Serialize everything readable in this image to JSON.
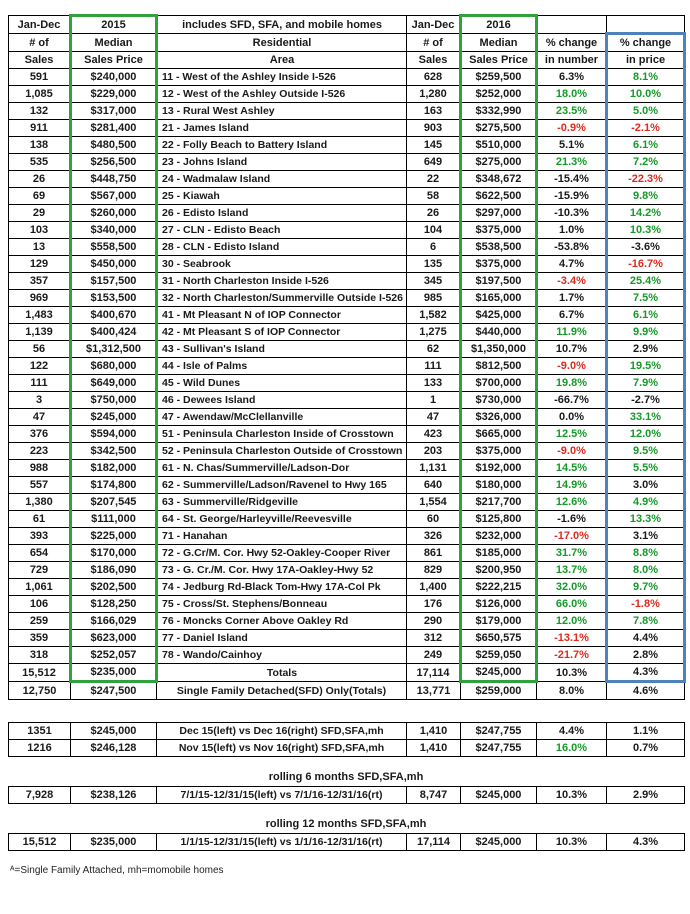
{
  "colors": {
    "positive": "#149b27",
    "negative": "#e02a1e",
    "green_box": "#2fa23c",
    "blue_box": "#4f81bd"
  },
  "header": {
    "r1": [
      "Jan-Dec",
      "2015",
      "includes SFD, SFA, and mobile homes",
      "Jan-Dec",
      "2016",
      "",
      ""
    ],
    "r2": [
      "# of",
      "Median",
      "Residential",
      "# of",
      "Median",
      "% change",
      "% change"
    ],
    "r3": [
      "Sales",
      "Sales Price",
      "Area",
      "Sales",
      "Sales Price",
      "in number",
      "in price"
    ]
  },
  "main_rows": [
    {
      "cells": [
        "591",
        "$240,000",
        "11 - West of the Ashley Inside I-526",
        "628",
        "$259,500",
        "6.3%",
        "8.1%"
      ],
      "num": "neu",
      "price": "pos"
    },
    {
      "cells": [
        "1,085",
        "$229,000",
        "12 - West of the Ashley Outside I-526",
        "1,280",
        "$252,000",
        "18.0%",
        "10.0%"
      ],
      "num": "pos",
      "price": "pos"
    },
    {
      "cells": [
        "132",
        "$317,000",
        "13 - Rural West Ashley",
        "163",
        "$332,990",
        "23.5%",
        "5.0%"
      ],
      "num": "pos",
      "price": "pos"
    },
    {
      "cells": [
        "911",
        "$281,400",
        "21 - James Island",
        "903",
        "$275,500",
        "-0.9%",
        "-2.1%"
      ],
      "num": "neg",
      "price": "neg"
    },
    {
      "cells": [
        "138",
        "$480,500",
        "22 - Folly Beach to Battery Island",
        "145",
        "$510,000",
        "5.1%",
        "6.1%"
      ],
      "num": "neu",
      "price": "pos"
    },
    {
      "cells": [
        "535",
        "$256,500",
        "23 - Johns Island",
        "649",
        "$275,000",
        "21.3%",
        "7.2%"
      ],
      "num": "pos",
      "price": "pos"
    },
    {
      "cells": [
        "26",
        "$448,750",
        "24 - Wadmalaw Island",
        "22",
        "$348,672",
        "-15.4%",
        "-22.3%"
      ],
      "num": "neu",
      "price": "neg"
    },
    {
      "cells": [
        "69",
        "$567,000",
        "25 - Kiawah",
        "58",
        "$622,500",
        "-15.9%",
        "9.8%"
      ],
      "num": "neu",
      "price": "pos"
    },
    {
      "cells": [
        "29",
        "$260,000",
        "26 - Edisto Island",
        "26",
        "$297,000",
        "-10.3%",
        "14.2%"
      ],
      "num": "neu",
      "price": "pos"
    },
    {
      "cells": [
        "103",
        "$340,000",
        "27 - CLN - Edisto Beach",
        "104",
        "$375,000",
        "1.0%",
        "10.3%"
      ],
      "num": "neu",
      "price": "pos"
    },
    {
      "cells": [
        "13",
        "$558,500",
        "28 - CLN - Edisto Island",
        "6",
        "$538,500",
        "-53.8%",
        "-3.6%"
      ],
      "num": "neu",
      "price": "neu"
    },
    {
      "cells": [
        "129",
        "$450,000",
        "30 - Seabrook",
        "135",
        "$375,000",
        "4.7%",
        "-16.7%"
      ],
      "num": "neu",
      "price": "neg"
    },
    {
      "cells": [
        "357",
        "$157,500",
        "31 - North Charleston Inside I-526",
        "345",
        "$197,500",
        "-3.4%",
        "25.4%"
      ],
      "num": "neg",
      "price": "pos"
    },
    {
      "cells": [
        "969",
        "$153,500",
        "32 - North Charleston/Summerville Outside I-526",
        "985",
        "$165,000",
        "1.7%",
        "7.5%"
      ],
      "num": "neu",
      "price": "pos"
    },
    {
      "cells": [
        "1,483",
        "$400,670",
        "41 - Mt Pleasant N of IOP Connector",
        "1,582",
        "$425,000",
        "6.7%",
        "6.1%"
      ],
      "num": "neu",
      "price": "pos"
    },
    {
      "cells": [
        "1,139",
        "$400,424",
        "42 - Mt Pleasant S of IOP Connector",
        "1,275",
        "$440,000",
        "11.9%",
        "9.9%"
      ],
      "num": "pos",
      "price": "pos"
    },
    {
      "cells": [
        "56",
        "$1,312,500",
        "43 - Sullivan's Island",
        "62",
        "$1,350,000",
        "10.7%",
        "2.9%"
      ],
      "num": "neu",
      "price": "neu"
    },
    {
      "cells": [
        "122",
        "$680,000",
        "44 - Isle of Palms",
        "111",
        "$812,500",
        "-9.0%",
        "19.5%"
      ],
      "num": "neg",
      "price": "pos"
    },
    {
      "cells": [
        "111",
        "$649,000",
        "45 - Wild Dunes",
        "133",
        "$700,000",
        "19.8%",
        "7.9%"
      ],
      "num": "pos",
      "price": "pos"
    },
    {
      "cells": [
        "3",
        "$750,000",
        "46 - Dewees Island",
        "1",
        "$730,000",
        "-66.7%",
        "-2.7%"
      ],
      "num": "neu",
      "price": "neu"
    },
    {
      "cells": [
        "47",
        "$245,000",
        "47 - Awendaw/McClellanville",
        "47",
        "$326,000",
        "0.0%",
        "33.1%"
      ],
      "num": "neu",
      "price": "pos"
    },
    {
      "cells": [
        "376",
        "$594,000",
        "51 - Peninsula Charleston Inside of Crosstown",
        "423",
        "$665,000",
        "12.5%",
        "12.0%"
      ],
      "num": "pos",
      "price": "pos"
    },
    {
      "cells": [
        "223",
        "$342,500",
        "52 - Peninsula Charleston Outside of Crosstown",
        "203",
        "$375,000",
        "-9.0%",
        "9.5%"
      ],
      "num": "neg",
      "price": "pos"
    },
    {
      "cells": [
        "988",
        "$182,000",
        "61 - N. Chas/Summerville/Ladson-Dor",
        "1,131",
        "$192,000",
        "14.5%",
        "5.5%"
      ],
      "num": "pos",
      "price": "pos"
    },
    {
      "cells": [
        "557",
        "$174,800",
        "62 - Summerville/Ladson/Ravenel to Hwy 165",
        "640",
        "$180,000",
        "14.9%",
        "3.0%"
      ],
      "num": "pos",
      "price": "neu"
    },
    {
      "cells": [
        "1,380",
        "$207,545",
        "63 - Summerville/Ridgeville",
        "1,554",
        "$217,700",
        "12.6%",
        "4.9%"
      ],
      "num": "pos",
      "price": "pos"
    },
    {
      "cells": [
        "61",
        "$111,000",
        "64 - St. George/Harleyville/Reevesville",
        "60",
        "$125,800",
        "-1.6%",
        "13.3%"
      ],
      "num": "neu",
      "price": "pos"
    },
    {
      "cells": [
        "393",
        "$225,000",
        "71 - Hanahan",
        "326",
        "$232,000",
        "-17.0%",
        "3.1%"
      ],
      "num": "neg",
      "price": "neu"
    },
    {
      "cells": [
        "654",
        "$170,000",
        "72 - G.Cr/M. Cor. Hwy 52-Oakley-Cooper River",
        "861",
        "$185,000",
        "31.7%",
        "8.8%"
      ],
      "num": "pos",
      "price": "pos"
    },
    {
      "cells": [
        "729",
        "$186,090",
        "73 - G. Cr./M. Cor. Hwy 17A-Oakley-Hwy 52",
        "829",
        "$200,950",
        "13.7%",
        "8.0%"
      ],
      "num": "pos",
      "price": "pos"
    },
    {
      "cells": [
        "1,061",
        "$202,500",
        "74 - Jedburg Rd-Black Tom-Hwy 17A-Col Pk",
        "1,400",
        "$222,215",
        "32.0%",
        "9.7%"
      ],
      "num": "pos",
      "price": "pos"
    },
    {
      "cells": [
        "106",
        "$128,250",
        "75 - Cross/St. Stephens/Bonneau",
        "176",
        "$126,000",
        "66.0%",
        "-1.8%"
      ],
      "num": "pos",
      "price": "neg"
    },
    {
      "cells": [
        "259",
        "$166,029",
        "76 - Moncks Corner Above Oakley Rd",
        "290",
        "$179,000",
        "12.0%",
        "7.8%"
      ],
      "num": "pos",
      "price": "pos"
    },
    {
      "cells": [
        "359",
        "$623,000",
        "77 - Daniel Island",
        "312",
        "$650,575",
        "-13.1%",
        "4.4%"
      ],
      "num": "neg",
      "price": "neu"
    },
    {
      "cells": [
        "318",
        "$252,057",
        "78 - Wando/Cainhoy",
        "249",
        "$259,050",
        "-21.7%",
        "2.8%"
      ],
      "num": "neg",
      "price": "neu"
    },
    {
      "cells": [
        "15,512",
        "$235,000",
        "Totals",
        "17,114",
        "$245,000",
        "10.3%",
        "4.3%"
      ],
      "num": "neu",
      "price": "neu",
      "center": true
    },
    {
      "cells": [
        "12,750",
        "$247,500",
        "Single Family Detached(SFD) Only(Totals)",
        "13,771",
        "$259,000",
        "8.0%",
        "4.6%"
      ],
      "num": "neu",
      "price": "neu",
      "center": true
    }
  ],
  "compare_rows": [
    {
      "cells": [
        "1351",
        "$245,000",
        "Dec 15(left) vs Dec 16(right) SFD,SFA,mh",
        "1,410",
        "$247,755",
        "4.4%",
        "1.1%"
      ],
      "num": "neu",
      "price": "neu",
      "center": true
    },
    {
      "cells": [
        "1216",
        "$246,128",
        "Nov 15(left) vs Nov 16(right) SFD,SFA,mh",
        "1,410",
        "$247,755",
        "16.0%",
        "0.7%"
      ],
      "num": "pos",
      "price": "neu",
      "center": true
    }
  ],
  "rolling6": {
    "caption": "rolling 6 months SFD,SFA,mh",
    "rows": [
      {
        "cells": [
          "7,928",
          "$238,126",
          "7/1/15-12/31/15(left) vs 7/1/16-12/31/16(rt)",
          "8,747",
          "$245,000",
          "10.3%",
          "2.9%"
        ],
        "num": "neu",
        "price": "neu",
        "center": true
      }
    ]
  },
  "rolling12": {
    "caption": "rolling 12 months SFD,SFA,mh",
    "rows": [
      {
        "cells": [
          "15,512",
          "$235,000",
          "1/1/15-12/31/15(left) vs 1/1/16-12/31/16(rt)",
          "17,114",
          "$245,000",
          "10.3%",
          "4.3%"
        ],
        "num": "neu",
        "price": "neu",
        "center": true
      }
    ]
  },
  "footnote": "ᴬ=Single Family Attached, mh=momobile homes"
}
